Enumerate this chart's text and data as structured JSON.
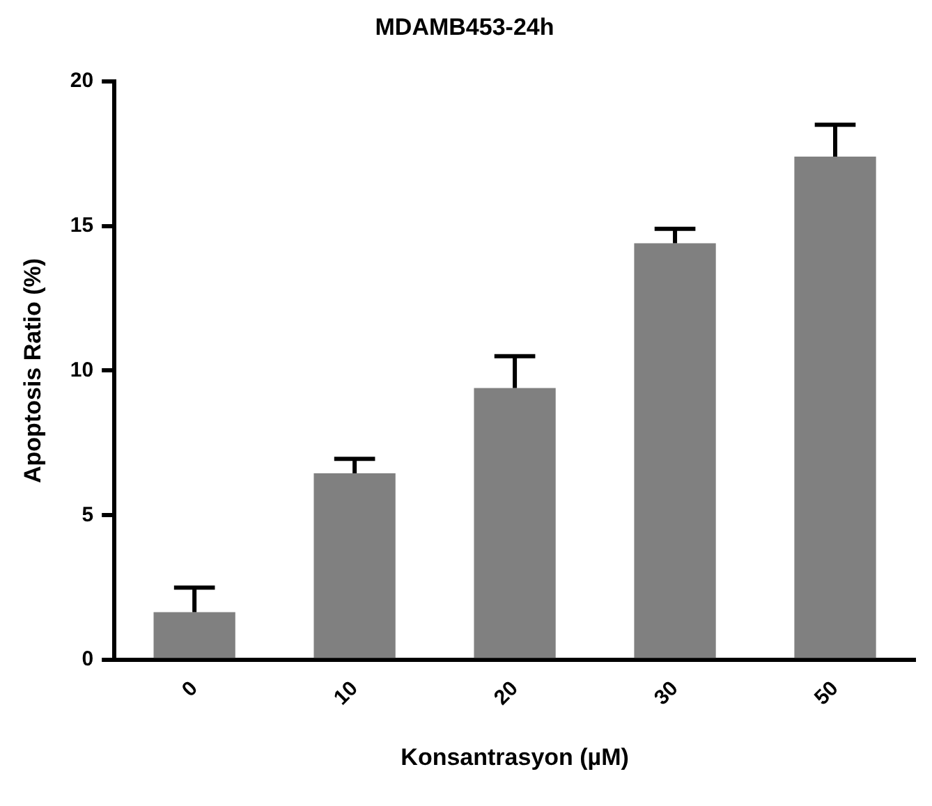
{
  "chart_data": {
    "type": "bar",
    "title": "MDAMB453-24h",
    "xlabel": "Konsantrasyon (µM)",
    "ylabel": "Apoptosis Ratio (%)",
    "categories": [
      "0",
      "10",
      "20",
      "30",
      "50"
    ],
    "values": [
      1.65,
      6.45,
      9.4,
      14.4,
      17.4
    ],
    "errors": [
      [
        1.65,
        2.5
      ],
      [
        6.45,
        6.95
      ],
      [
        9.4,
        10.5
      ],
      [
        14.4,
        14.9
      ],
      [
        17.4,
        18.5
      ]
    ],
    "color": "#808080",
    "ylim": [
      0,
      20
    ],
    "yticks": [
      0,
      5,
      10,
      15,
      20
    ],
    "grid": false,
    "legend": false
  }
}
